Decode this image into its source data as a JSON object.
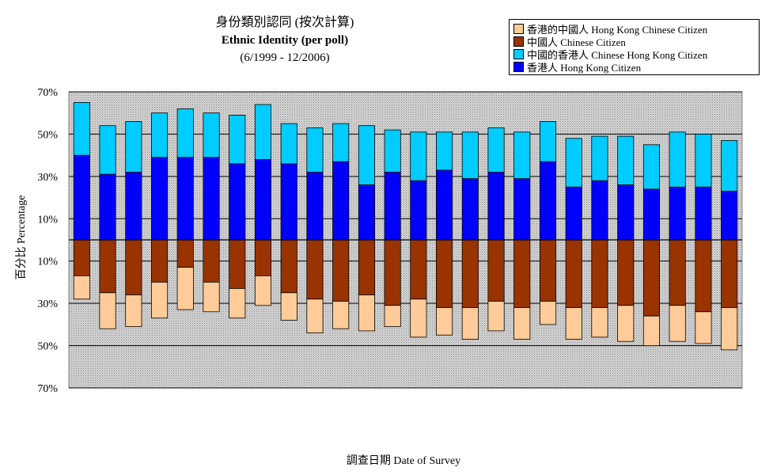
{
  "title": {
    "line1": "身份類別認同 (按次計算)",
    "line2": "Ethnic Identity (per poll)",
    "line3": "(6/1999 - 12/2006)"
  },
  "legend": [
    {
      "label": "香港的中國人 Hong Kong Chinese Citizen",
      "color": "#FFCC99"
    },
    {
      "label": "中國人 Chinese Citizen",
      "color": "#993300"
    },
    {
      "label": "中國的香港人 Chinese Hong Kong Citizen",
      "color": "#00CCFF"
    },
    {
      "label": "香港人 Hong Kong Citizen",
      "color": "#0000FF"
    }
  ],
  "ylabel": "百分比 Percentage",
  "xlabel": "調查日期 Date of Survey",
  "chart_data": {
    "type": "bar",
    "stacked": "diverging",
    "y_tick_labels": [
      "70%",
      "50%",
      "30%",
      "10%",
      "10%",
      "30%",
      "50%",
      "70%"
    ],
    "ylim": [
      -70,
      70
    ],
    "plot_background": "grey-dotted",
    "legend_position": "top-right",
    "series": [
      {
        "name": "香港人 Hong Kong Citizen",
        "direction": "up",
        "color": "#0000FF",
        "values": [
          40,
          31,
          32,
          39,
          39,
          39,
          36,
          38,
          36,
          32,
          37,
          26,
          32,
          28,
          33,
          29,
          32,
          29,
          37,
          25,
          28,
          26,
          24,
          25,
          25,
          23
        ]
      },
      {
        "name": "中國的香港人 Chinese Hong Kong Citizen",
        "direction": "up",
        "color": "#00CCFF",
        "values": [
          25,
          23,
          24,
          21,
          23,
          21,
          23,
          26,
          19,
          21,
          18,
          28,
          20,
          23,
          18,
          22,
          21,
          22,
          19,
          23,
          21,
          23,
          21,
          26,
          25,
          24
        ]
      },
      {
        "name": "中國人 Chinese Citizen",
        "direction": "down",
        "color": "#993300",
        "values": [
          17,
          25,
          26,
          20,
          13,
          20,
          23,
          17,
          25,
          28,
          29,
          26,
          31,
          28,
          32,
          32,
          29,
          32,
          29,
          32,
          32,
          31,
          36,
          31,
          34,
          32
        ]
      },
      {
        "name": "香港的中國人 Hong Kong Chinese Citizen",
        "direction": "down",
        "color": "#FFCC99",
        "values": [
          11,
          17,
          15,
          17,
          20,
          14,
          14,
          14,
          13,
          16,
          13,
          17,
          10,
          18,
          13,
          15,
          14,
          15,
          11,
          15,
          14,
          17,
          14,
          17,
          15,
          20
        ]
      }
    ]
  }
}
